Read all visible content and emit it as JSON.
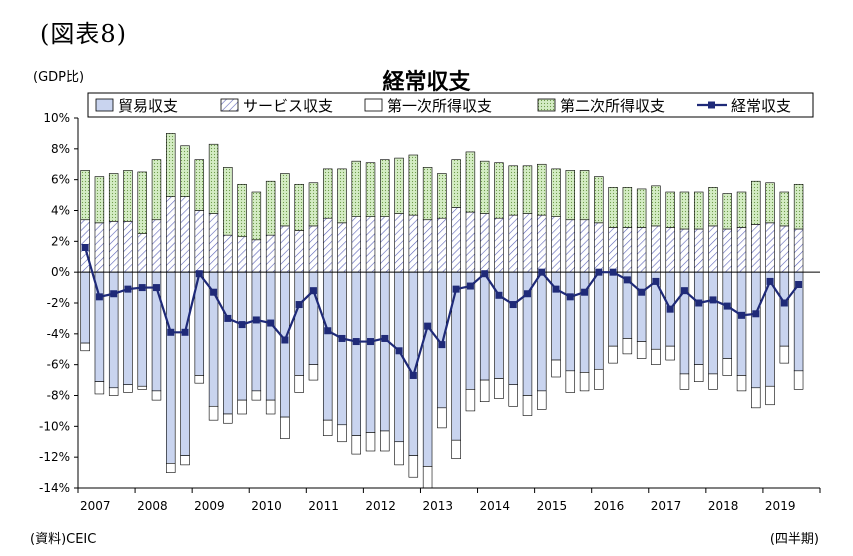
{
  "figure_label": "(図表8)",
  "unit_label": "(GDP比)",
  "source_note": "(資料)CEIC",
  "period_note": "(四半期)",
  "colors": {
    "trade": "#c9d4ef",
    "services": "#ffffff",
    "primary_income": "#ffffff",
    "secondary_income": "#d4ecc4",
    "current_account_line": "#1f2a78",
    "outline": "#000000"
  },
  "chart_data": {
    "type": "bar",
    "title": "経常収支",
    "xlabel": "",
    "ylabel": "",
    "ylim": [
      -14,
      10
    ],
    "yticks": [
      10,
      8,
      6,
      4,
      2,
      0,
      -2,
      -4,
      -6,
      -8,
      -10,
      -12,
      -14
    ],
    "ytick_labels": [
      "10%",
      "8%",
      "6%",
      "4%",
      "2%",
      "0%",
      "-2%",
      "-4%",
      "-6%",
      "-8%",
      "-10%",
      "-12%",
      "-14%"
    ],
    "grid": false,
    "legend_position": "top",
    "x_labels": [
      "2007",
      "2008",
      "2009",
      "2010",
      "2011",
      "2012",
      "2013",
      "2014",
      "2015",
      "2016",
      "2017",
      "2018",
      "2019"
    ],
    "quarters_per_label": 4,
    "categories": [
      "2007Q1",
      "2007Q2",
      "2007Q3",
      "2007Q4",
      "2008Q1",
      "2008Q2",
      "2008Q3",
      "2008Q4",
      "2009Q1",
      "2009Q2",
      "2009Q3",
      "2009Q4",
      "2010Q1",
      "2010Q2",
      "2010Q3",
      "2010Q4",
      "2011Q1",
      "2011Q2",
      "2011Q3",
      "2011Q4",
      "2012Q1",
      "2012Q2",
      "2012Q3",
      "2012Q4",
      "2013Q1",
      "2013Q2",
      "2013Q3",
      "2013Q4",
      "2014Q1",
      "2014Q2",
      "2014Q3",
      "2014Q4",
      "2015Q1",
      "2015Q2",
      "2015Q3",
      "2015Q4",
      "2016Q1",
      "2016Q2",
      "2016Q3",
      "2016Q4",
      "2017Q1",
      "2017Q2",
      "2017Q3",
      "2017Q4",
      "2018Q1",
      "2018Q2",
      "2018Q3",
      "2018Q4",
      "2019Q1",
      "2019Q2",
      "2019Q3"
    ],
    "series": [
      {
        "name": "貿易収支",
        "type": "bar",
        "values": [
          -4.6,
          -7.1,
          -7.5,
          -7.3,
          -7.4,
          -7.7,
          -12.4,
          -11.9,
          -6.7,
          -8.7,
          -9.2,
          -8.3,
          -7.7,
          -8.3,
          -9.4,
          -6.7,
          -6.0,
          -9.6,
          -9.9,
          -10.6,
          -10.4,
          -10.3,
          -11.0,
          -11.9,
          -12.6,
          -8.8,
          -10.9,
          -7.6,
          -7.0,
          -6.9,
          -7.3,
          -8.0,
          -7.7,
          -5.7,
          -6.4,
          -6.5,
          -6.3,
          -4.8,
          -4.3,
          -4.5,
          -5.0,
          -4.8,
          -6.6,
          -6.0,
          -6.6,
          -5.6,
          -6.7,
          -7.5,
          -7.4,
          -4.8,
          -6.4
        ]
      },
      {
        "name": "サービス収支",
        "type": "bar",
        "values": [
          3.4,
          3.2,
          3.3,
          3.3,
          2.5,
          3.4,
          4.9,
          4.9,
          4.0,
          3.8,
          2.4,
          2.3,
          2.1,
          2.4,
          3.0,
          2.7,
          3.0,
          3.5,
          3.2,
          3.6,
          3.6,
          3.6,
          3.8,
          3.7,
          3.4,
          3.5,
          4.2,
          3.9,
          3.8,
          3.5,
          3.7,
          3.8,
          3.7,
          3.6,
          3.4,
          3.4,
          3.2,
          2.9,
          2.9,
          2.9,
          3.0,
          2.9,
          2.8,
          2.8,
          3.0,
          2.8,
          2.9,
          3.1,
          3.2,
          3.0,
          2.8
        ]
      },
      {
        "name": "第一次所得収支",
        "type": "bar",
        "values": [
          -0.5,
          -0.8,
          -0.5,
          -0.5,
          -0.2,
          -0.6,
          -0.6,
          -0.6,
          -0.5,
          -0.9,
          -0.6,
          -0.9,
          -0.6,
          -0.9,
          -1.4,
          -1.1,
          -1.0,
          -1.0,
          -1.1,
          -1.2,
          -1.2,
          -1.3,
          -1.5,
          -1.4,
          -1.4,
          -1.3,
          -1.2,
          -1.4,
          -1.4,
          -1.3,
          -1.4,
          -1.3,
          -1.2,
          -1.1,
          -1.4,
          -1.2,
          -1.3,
          -1.1,
          -1.0,
          -1.1,
          -1.0,
          -0.9,
          -1.0,
          -1.1,
          -1.0,
          -1.1,
          -1.0,
          -1.3,
          -1.2,
          -1.1,
          -1.2
        ]
      },
      {
        "name": "第二次所得収支",
        "type": "bar",
        "values": [
          3.2,
          3.0,
          3.1,
          3.3,
          4.0,
          3.9,
          4.1,
          3.3,
          3.3,
          4.5,
          4.4,
          3.4,
          3.1,
          3.5,
          3.4,
          3.0,
          2.8,
          3.2,
          3.5,
          3.6,
          3.5,
          3.7,
          3.6,
          3.9,
          3.4,
          2.9,
          3.1,
          3.9,
          3.4,
          3.6,
          3.2,
          3.1,
          3.3,
          3.1,
          3.2,
          3.2,
          3.0,
          2.6,
          2.6,
          2.5,
          2.6,
          2.3,
          2.4,
          2.4,
          2.5,
          2.3,
          2.3,
          2.8,
          2.6,
          2.2,
          2.9
        ]
      },
      {
        "name": "経常収支",
        "type": "line",
        "values": [
          1.6,
          -1.6,
          -1.4,
          -1.1,
          -1.0,
          -1.0,
          -3.9,
          -3.9,
          -0.1,
          -1.3,
          -3.0,
          -3.4,
          -3.1,
          -3.3,
          -4.4,
          -2.1,
          -1.2,
          -3.8,
          -4.3,
          -4.5,
          -4.5,
          -4.3,
          -5.1,
          -6.7,
          -3.5,
          -4.7,
          -1.1,
          -0.9,
          -0.1,
          -1.5,
          -2.1,
          -1.4,
          0.0,
          -1.1,
          -1.6,
          -1.3,
          0.0,
          0.0,
          -0.5,
          -1.3,
          -0.6,
          -2.4,
          -1.2,
          -2.0,
          -1.8,
          -2.2,
          -2.8,
          -2.7,
          -0.6,
          -2.0,
          -0.8
        ]
      }
    ]
  }
}
